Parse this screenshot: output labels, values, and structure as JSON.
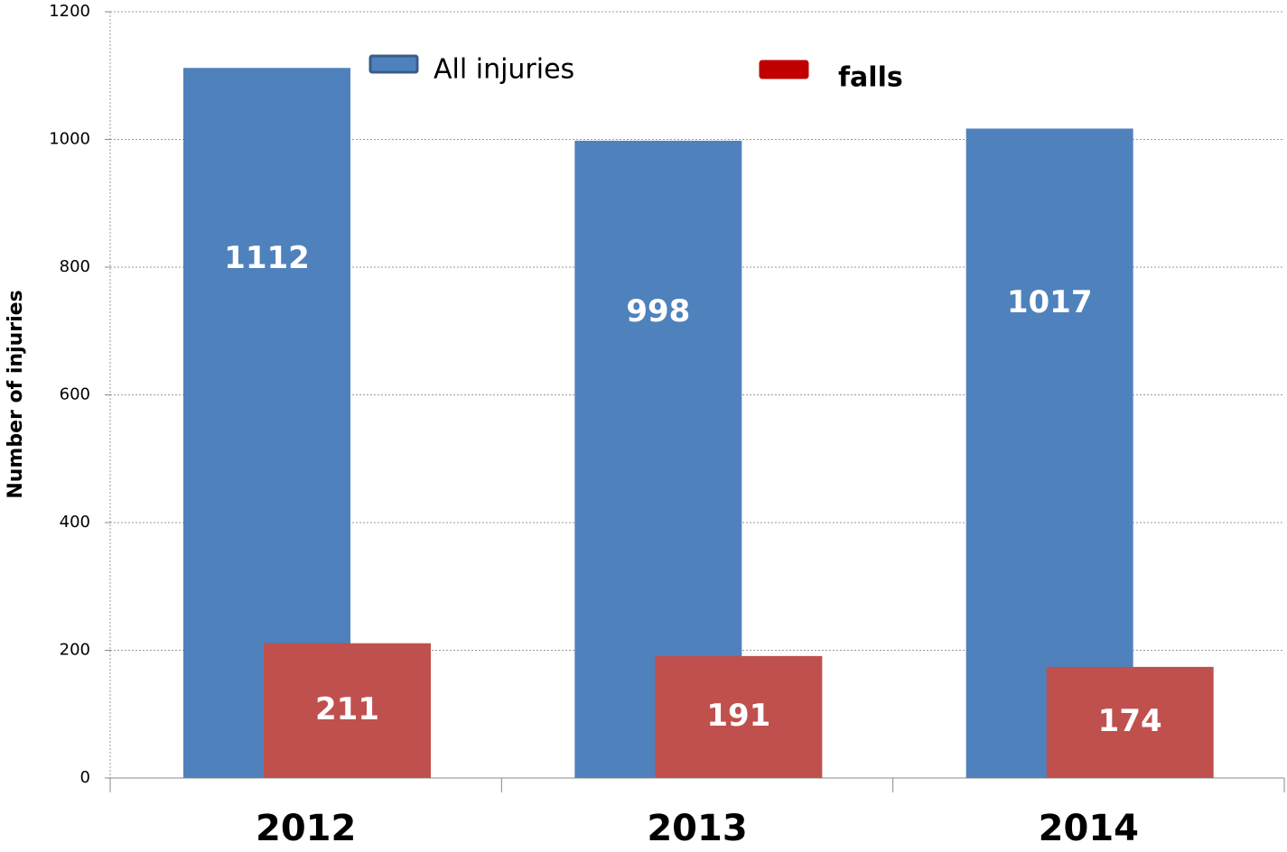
{
  "chart_data": {
    "type": "bar",
    "y_label": "Number of injuries",
    "categories": [
      "2012",
      "2013",
      "2014"
    ],
    "series": [
      {
        "name": "All injuries",
        "color": "#4f81bd",
        "values": [
          1112,
          998,
          1017
        ]
      },
      {
        "name": "falls",
        "color": "#c0504d",
        "values": [
          211,
          191,
          174
        ]
      }
    ],
    "ylim": [
      0,
      1200
    ],
    "yticks": [
      0,
      200,
      400,
      600,
      800,
      1000,
      1200
    ],
    "grid": true
  }
}
